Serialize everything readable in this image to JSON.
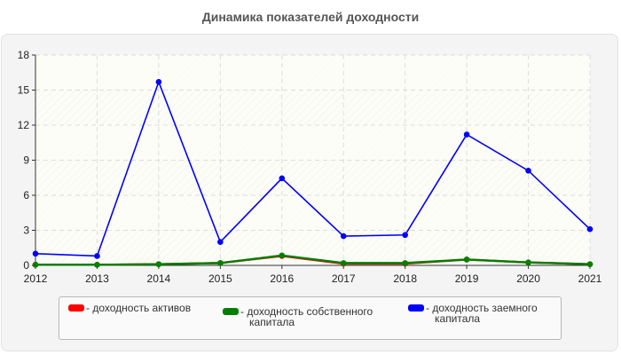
{
  "title": "Динамика показателей доходности",
  "legend": [
    {
      "label_line1": "- доходность активов",
      "label_line2": "",
      "color": "#ff0000"
    },
    {
      "label_line1": "- доходность собственного",
      "label_line2": "капитала",
      "color": "#008000"
    },
    {
      "label_line1": "- доходность заемного",
      "label_line2": "капитала",
      "color": "#0000ff"
    }
  ],
  "chart_data": {
    "type": "line",
    "title": "Динамика показателей доходности",
    "xlabel": "",
    "ylabel": "",
    "x": [
      "2012",
      "2013",
      "2014",
      "2015",
      "2016",
      "2017",
      "2018",
      "2019",
      "2020",
      "2021"
    ],
    "ylim": [
      0,
      18
    ],
    "yticks": [
      0,
      3,
      6,
      9,
      12,
      15,
      18
    ],
    "grid": true,
    "legend_position": "bottom",
    "series": [
      {
        "name": "доходность активов",
        "color": "#ff0000",
        "values": [
          0.05,
          0.05,
          0.1,
          0.2,
          0.8,
          0.15,
          0.15,
          0.5,
          0.25,
          0.1
        ]
      },
      {
        "name": "доходность собственного капитала",
        "color": "#008000",
        "values": [
          0.05,
          0.05,
          0.1,
          0.2,
          0.85,
          0.2,
          0.2,
          0.5,
          0.25,
          0.1
        ]
      },
      {
        "name": "доходность заемного капитала",
        "color": "#0000ff",
        "values": [
          1.0,
          0.8,
          15.7,
          2.0,
          7.45,
          2.5,
          2.6,
          11.2,
          8.1,
          3.1
        ]
      }
    ]
  }
}
